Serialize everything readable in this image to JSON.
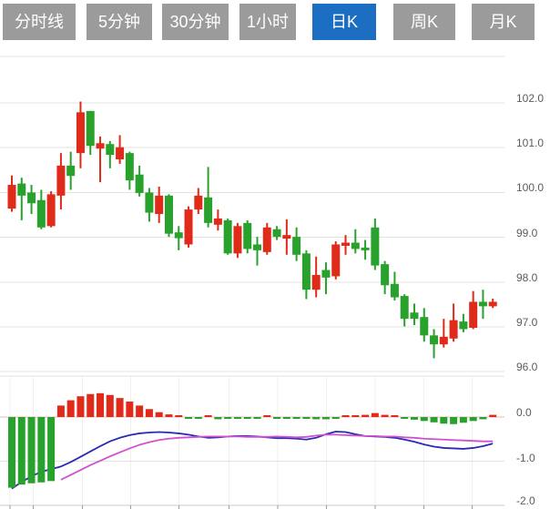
{
  "tabs": {
    "items": [
      {
        "label": "分时线",
        "active": false
      },
      {
        "label": "5分钟",
        "active": false
      },
      {
        "label": "30分钟",
        "active": false
      },
      {
        "label": "1小时",
        "active": false
      },
      {
        "label": "日K",
        "active": true
      },
      {
        "label": "周K",
        "active": false
      },
      {
        "label": "月K",
        "active": false
      }
    ]
  },
  "colors": {
    "up": "#e02a1a",
    "down": "#28a22c",
    "dif_line": "#2a2ab2",
    "dea_line": "#d050d0",
    "tab_bg": "#9b9b9b",
    "tab_active_bg": "#1b6ec2",
    "grid": "#e3e3e3",
    "axis_line": "#c8c8c8",
    "tick": "#9a9a9a",
    "zero_line": "#eab8b8",
    "axis_text": "#595c60"
  },
  "price_axis": {
    "labels": [
      "102.0",
      "101.0",
      "100.0",
      "99.0",
      "98.0",
      "97.0",
      "96.0"
    ]
  },
  "macd_axis": {
    "labels": [
      "0.0",
      "-1.0",
      "-2.0"
    ]
  },
  "chart_data": {
    "type": "candlestick+macd",
    "period_selected": "日K",
    "price_panel": {
      "ylim": [
        95.9,
        103.0
      ],
      "gridlines": [
        102,
        101,
        100,
        99,
        98,
        97,
        96
      ],
      "grid": "horizontal-only",
      "legend_position": "none"
    },
    "macd_panel": {
      "ylim": [
        -2.0,
        0.6
      ],
      "gridlines": [
        0,
        -1,
        -2
      ],
      "x_ticks": [
        11,
        36.7,
        90.7,
        143.3,
        196.7,
        251.7,
        305,
        358.7,
        412,
        465.3,
        518.7
      ]
    },
    "candles": [
      [
        99.64,
        100.38,
        99.57,
        100.17
      ],
      [
        100.2,
        100.33,
        99.38,
        99.93
      ],
      [
        100.0,
        100.17,
        99.52,
        99.76
      ],
      [
        99.83,
        100.06,
        99.18,
        99.22
      ],
      [
        99.25,
        100.03,
        99.22,
        99.96
      ],
      [
        99.93,
        100.88,
        99.62,
        100.6
      ],
      [
        100.6,
        100.91,
        100.06,
        100.37
      ],
      [
        100.88,
        102.03,
        100.54,
        101.79
      ],
      [
        101.82,
        101.82,
        100.84,
        101.04
      ],
      [
        100.98,
        101.25,
        100.23,
        101.1
      ],
      [
        101.08,
        101.15,
        100.54,
        100.84
      ],
      [
        100.74,
        101.28,
        100.64,
        101.01
      ],
      [
        100.88,
        100.91,
        100.06,
        100.27
      ],
      [
        100.4,
        100.6,
        99.91,
        99.99
      ],
      [
        100.0,
        100.1,
        99.35,
        99.55
      ],
      [
        99.52,
        100.13,
        99.32,
        99.93
      ],
      [
        99.93,
        99.96,
        99.01,
        99.08
      ],
      [
        99.11,
        99.25,
        98.71,
        98.98
      ],
      [
        98.84,
        99.69,
        98.77,
        99.62
      ],
      [
        99.62,
        100.1,
        99.52,
        99.93
      ],
      [
        99.89,
        100.57,
        99.22,
        99.32
      ],
      [
        99.28,
        99.62,
        99.15,
        99.42
      ],
      [
        99.38,
        99.42,
        98.61,
        98.64
      ],
      [
        98.64,
        99.32,
        98.54,
        99.25
      ],
      [
        99.32,
        99.38,
        98.64,
        98.74
      ],
      [
        98.84,
        99.01,
        98.37,
        98.71
      ],
      [
        98.67,
        99.32,
        98.61,
        99.22
      ],
      [
        99.18,
        99.25,
        98.94,
        99.01
      ],
      [
        98.97,
        99.4,
        98.61,
        99.05
      ],
      [
        99.01,
        99.22,
        98.47,
        98.61
      ],
      [
        98.64,
        98.71,
        97.62,
        97.83
      ],
      [
        97.83,
        98.57,
        97.66,
        98.16
      ],
      [
        98.27,
        98.44,
        97.73,
        98.1
      ],
      [
        98.13,
        98.91,
        98.06,
        98.84
      ],
      [
        98.81,
        99.05,
        98.61,
        98.88
      ],
      [
        98.88,
        99.18,
        98.64,
        98.74
      ],
      [
        98.77,
        98.94,
        98.5,
        98.71
      ],
      [
        99.22,
        99.42,
        98.27,
        98.37
      ],
      [
        98.4,
        98.47,
        97.73,
        97.93
      ],
      [
        97.96,
        98.23,
        97.59,
        97.66
      ],
      [
        97.69,
        97.73,
        97.01,
        97.18
      ],
      [
        97.32,
        97.52,
        97.04,
        97.18
      ],
      [
        97.22,
        97.42,
        96.67,
        96.81
      ],
      [
        96.81,
        96.95,
        96.3,
        96.61
      ],
      [
        96.61,
        97.18,
        96.54,
        96.78
      ],
      [
        96.74,
        97.52,
        96.67,
        97.15
      ],
      [
        97.12,
        97.29,
        96.88,
        96.95
      ],
      [
        96.98,
        97.8,
        96.95,
        97.56
      ],
      [
        97.56,
        97.83,
        97.18,
        97.46
      ],
      [
        97.46,
        97.63,
        97.42,
        97.56
      ]
    ],
    "macd": {
      "histogram": [
        -1.6,
        -1.53,
        -1.5,
        -1.48,
        -1.45,
        0.26,
        0.38,
        0.47,
        0.52,
        0.54,
        0.5,
        0.43,
        0.35,
        0.26,
        0.18,
        0.11,
        0.06,
        0.03,
        -0.03,
        -0.04,
        0.02,
        -0.05,
        -0.04,
        -0.03,
        -0.04,
        -0.03,
        0.02,
        -0.04,
        -0.02,
        -0.04,
        -0.03,
        -0.05,
        -0.05,
        -0.04,
        0.02,
        0.04,
        0.05,
        0.09,
        0.05,
        0.03,
        -0.04,
        -0.06,
        -0.09,
        -0.12,
        -0.15,
        -0.16,
        -0.13,
        -0.09,
        -0.05,
        0.05
      ],
      "dif": [
        -1.62,
        -1.47,
        -1.34,
        -1.24,
        -1.18,
        -1.12,
        -1.02,
        -0.9,
        -0.78,
        -0.66,
        -0.55,
        -0.47,
        -0.41,
        -0.37,
        -0.35,
        -0.34,
        -0.35,
        -0.37,
        -0.4,
        -0.44,
        -0.47,
        -0.46,
        -0.44,
        -0.43,
        -0.43,
        -0.44,
        -0.46,
        -0.48,
        -0.48,
        -0.49,
        -0.51,
        -0.47,
        -0.39,
        -0.33,
        -0.34,
        -0.39,
        -0.43,
        -0.44,
        -0.45,
        -0.47,
        -0.51,
        -0.56,
        -0.62,
        -0.67,
        -0.7,
        -0.71,
        -0.72,
        -0.7,
        -0.66,
        -0.6
      ],
      "dea": [
        null,
        null,
        null,
        null,
        null,
        -1.42,
        -1.31,
        -1.2,
        -1.09,
        -0.99,
        -0.89,
        -0.8,
        -0.71,
        -0.63,
        -0.57,
        -0.52,
        -0.49,
        -0.47,
        -0.46,
        -0.45,
        -0.44,
        -0.44,
        -0.44,
        -0.44,
        -0.45,
        -0.45,
        -0.45,
        -0.44,
        -0.45,
        -0.46,
        -0.45,
        -0.42,
        -0.4,
        -0.4,
        -0.41,
        -0.42,
        -0.43,
        -0.43,
        -0.44,
        -0.44,
        -0.46,
        -0.47,
        -0.49,
        -0.5,
        -0.51,
        -0.52,
        -0.53,
        -0.54,
        -0.55,
        -0.55
      ]
    }
  }
}
